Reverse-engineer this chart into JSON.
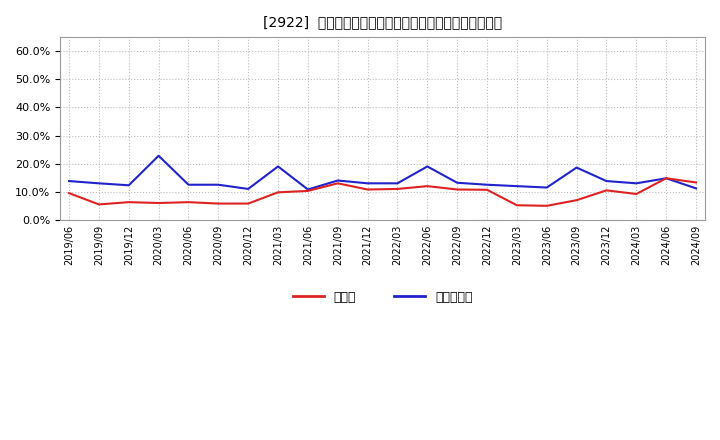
{
  "title": "[2922]  現預金、有利子負債の総資産に対する比率の推移",
  "x_labels": [
    "2019/06",
    "2019/09",
    "2019/12",
    "2020/03",
    "2020/06",
    "2020/09",
    "2020/12",
    "2021/03",
    "2021/06",
    "2021/09",
    "2021/12",
    "2022/03",
    "2022/06",
    "2022/09",
    "2022/12",
    "2023/03",
    "2023/06",
    "2023/09",
    "2023/12",
    "2024/03",
    "2024/06",
    "2024/09"
  ],
  "genkin": [
    0.095,
    0.055,
    0.063,
    0.06,
    0.063,
    0.058,
    0.058,
    0.098,
    0.103,
    0.13,
    0.108,
    0.11,
    0.12,
    0.108,
    0.107,
    0.052,
    0.05,
    0.07,
    0.105,
    0.092,
    0.148,
    0.133
  ],
  "yurishifusai": [
    0.138,
    0.13,
    0.123,
    0.228,
    0.125,
    0.125,
    0.11,
    0.19,
    0.108,
    0.14,
    0.13,
    0.13,
    0.19,
    0.132,
    0.125,
    0.12,
    0.115,
    0.186,
    0.138,
    0.13,
    0.148,
    0.112
  ],
  "genkin_color": "#dd2222",
  "yurishifusai_color": "#2222cc",
  "background_color": "#ffffff",
  "plot_bg_color": "#ffffff",
  "grid_color": "#bbbbbb",
  "legend_genkin": "現預金",
  "legend_yurishifusai": "有利子負債",
  "ylim": [
    0.0,
    0.65
  ],
  "yticks": [
    0.0,
    0.1,
    0.2,
    0.3,
    0.4,
    0.5,
    0.6
  ]
}
